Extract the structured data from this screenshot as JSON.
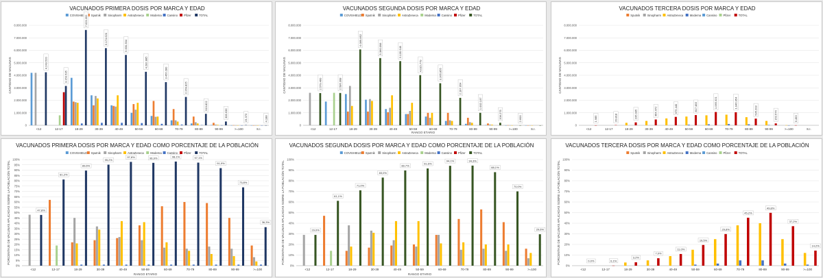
{
  "chart_data": [
    {
      "type": "bar",
      "title": "VACUNADOS PRIMERA DOSIS POR MARCA Y EDAD",
      "xlabel": "",
      "ylabel": "CANTIDAD DE VACUNAS",
      "ylim": [
        0,
        8000000
      ],
      "yticks": [
        "0",
        "1.000.000",
        "2.000.000",
        "3.000.000",
        "4.000.000",
        "5.000.000",
        "6.000.000",
        "7.000.000",
        "8.000.000"
      ],
      "categories": [
        "<12",
        "12-17",
        "18-29",
        "30-39",
        "40-49",
        "50-59",
        "60-69",
        "70-79",
        "80-89",
        "90-99",
        ">=100",
        "S.I."
      ],
      "series": [
        {
          "name": "COVISHIELD",
          "color": "#5b9bd5",
          "values": [
            4200000,
            0,
            3800000,
            2400000,
            1600000,
            1000000,
            750000,
            400000,
            150000,
            30000,
            3000,
            1000
          ]
        },
        {
          "name": "Sputnik",
          "color": "#ed7d31",
          "values": [
            0,
            0,
            1900000,
            1600000,
            1550000,
            1700000,
            1950000,
            1300000,
            700000,
            200000,
            10000,
            1000
          ]
        },
        {
          "name": "Sinopharm",
          "color": "#a5a5a5",
          "values": [
            4200000,
            0,
            1850000,
            2350000,
            1500000,
            1250000,
            680000,
            400000,
            250000,
            60000,
            5000,
            1000
          ]
        },
        {
          "name": "AstraZeneca",
          "color": "#ffc000",
          "values": [
            0,
            0,
            1800000,
            2150000,
            2400000,
            1800000,
            700000,
            300000,
            150000,
            40000,
            3000,
            1000
          ]
        },
        {
          "name": "Moderna",
          "color": "#a9d18e",
          "values": [
            0,
            800000,
            0,
            0,
            0,
            0,
            0,
            0,
            0,
            0,
            0,
            0
          ]
        },
        {
          "name": "Cansino",
          "color": "#4472c4",
          "values": [
            0,
            0,
            150000,
            200000,
            200000,
            180000,
            120000,
            60000,
            20000,
            5000,
            500,
            200
          ]
        },
        {
          "name": "Pfizer",
          "color": "#c00000",
          "values": [
            0,
            2650000,
            0,
            0,
            0,
            0,
            0,
            0,
            0,
            0,
            0,
            0
          ]
        },
        {
          "name": "TOTAL",
          "color": "#203864",
          "values": [
            4243520,
            3150535,
            7629352,
            6174620,
            5630304,
            4282885,
            3456280,
            2269825,
            919822,
            306636,
            23373,
            4188
          ]
        }
      ],
      "data_labels": [
        "4.243.520",
        "3.150.535",
        "7.629.352",
        "6.174.620",
        "5.630.304",
        "4.282.885",
        "3.456.280",
        "2.269.825",
        "919.822",
        "306.636",
        "23.373",
        "4.188"
      ]
    },
    {
      "type": "bar",
      "title": "VACUNADOS SEGUNDA DOSIS POR MARCA Y EDAD",
      "xlabel": "RANGO ETARIO",
      "ylabel": "CANTIDAD DE VACUNAS",
      "ylim": [
        0,
        8000000
      ],
      "yticks": [
        "0",
        "1.000.000",
        "2.000.000",
        "3.000.000",
        "4.000.000",
        "5.000.000",
        "6.000.000",
        "7.000.000",
        "8.000.000"
      ],
      "categories": [
        "<12",
        "12-17",
        "18-29",
        "30-39",
        "40-49",
        "50-59",
        "60-69",
        "70-79",
        "80-89",
        "90-99",
        ">=100",
        "S.I."
      ],
      "series": [
        {
          "name": "COVISHIELD",
          "color": "#5b9bd5",
          "values": [
            0,
            1900000,
            2500000,
            2050000,
            1300000,
            900000,
            700000,
            350000,
            120000,
            25000,
            2000,
            500
          ]
        },
        {
          "name": "Sputnik",
          "color": "#ed7d31",
          "values": [
            0,
            0,
            1100000,
            1100000,
            1050000,
            900000,
            1000000,
            1000000,
            600000,
            150000,
            8000,
            500
          ]
        },
        {
          "name": "Sinopharm",
          "color": "#a5a5a5",
          "values": [
            2600000,
            0,
            3150000,
            2100000,
            1400000,
            1150000,
            600000,
            400000,
            250000,
            60000,
            5000,
            500
          ]
        },
        {
          "name": "AstraZeneca",
          "color": "#ffc000",
          "values": [
            0,
            0,
            1550000,
            1950000,
            2400000,
            1800000,
            1000000,
            350000,
            200000,
            50000,
            3000,
            500
          ]
        },
        {
          "name": "Moderna",
          "color": "#a9d18e",
          "values": [
            0,
            2600000,
            0,
            0,
            0,
            0,
            0,
            0,
            0,
            0,
            0,
            0
          ]
        },
        {
          "name": "Cansino",
          "color": "#4472c4",
          "values": [
            0,
            0,
            0,
            0,
            0,
            0,
            0,
            0,
            0,
            0,
            0,
            0
          ]
        },
        {
          "name": "Pfizer",
          "color": "#c00000",
          "values": [
            0,
            0,
            0,
            0,
            0,
            0,
            0,
            0,
            0,
            0,
            0,
            0
          ]
        },
        {
          "name": "TOTAL",
          "color": "#375623",
          "values": [
            2579460,
            2586308,
            6069852,
            5380098,
            5135549,
            4015779,
            3365855,
            2197954,
            1002137,
            206275,
            2600,
            50
          ]
        }
      ],
      "data_labels": [
        "2.579.460",
        "2.586.308",
        "6.069.852",
        "5.380.098",
        "5.135.549",
        "4.015.779",
        "3.365.855",
        "2.197.954",
        "1.002.137",
        "206.275",
        "2.600",
        ""
      ]
    },
    {
      "type": "bar",
      "title": "VACUNADOS TERCERA DOSIS POR MARCA Y EDAD",
      "xlabel": "",
      "ylabel": "CANTIDAD DE VACUNAS",
      "ylim": [
        0,
        8000000
      ],
      "yticks": [
        "0",
        "1.000.000",
        "2.000.000",
        "3.000.000",
        "4.000.000",
        "5.000.000",
        "6.000.000",
        "7.000.000",
        "8.000.000"
      ],
      "categories": [
        "<12",
        "12-17",
        "18-29",
        "30-39",
        "40-49",
        "50-59",
        "60-69",
        "70-79",
        "80-89",
        "90-99",
        ">=100",
        "S.I."
      ],
      "series": [
        {
          "name": "Sputnik",
          "color": "#ed7d31",
          "values": [
            0,
            0,
            0,
            0,
            0,
            0,
            0,
            0,
            0,
            0,
            0,
            0
          ]
        },
        {
          "name": "Sinopharm",
          "color": "#a5a5a5",
          "values": [
            0,
            0,
            0,
            0,
            0,
            0,
            0,
            0,
            0,
            0,
            0,
            0
          ]
        },
        {
          "name": "AstraZeneca",
          "color": "#ffc000",
          "values": [
            0,
            0,
            200000,
            350000,
            550000,
            700000,
            800000,
            850000,
            650000,
            350000,
            10000,
            0
          ]
        },
        {
          "name": "Moderna",
          "color": "#4472c4",
          "values": [
            0,
            0,
            0,
            0,
            0,
            50000,
            80000,
            100000,
            80000,
            30000,
            500,
            0
          ]
        },
        {
          "name": "Cansino",
          "color": "#5b9bd5",
          "values": [
            0,
            0,
            0,
            0,
            0,
            0,
            0,
            0,
            0,
            0,
            0,
            0
          ]
        },
        {
          "name": "Pfizer",
          "color": "#a9d18e",
          "values": [
            0,
            0,
            0,
            0,
            0,
            0,
            0,
            0,
            0,
            0,
            0,
            0
          ]
        },
        {
          "name": "TOTAL",
          "color": "#c00000",
          "values": [
            1985,
            20818,
            235035,
            464472,
            675440,
            817483,
            1065321,
            1046054,
            535203,
            152574,
            6493,
            0
          ]
        }
      ],
      "data_labels": [
        "1.985",
        "20.818",
        "235.035",
        "464.472",
        "675.440",
        "817.483",
        "1.065.321",
        "1.046.054",
        "535.203",
        "152.574",
        "6.493",
        ""
      ]
    },
    {
      "type": "bar",
      "title": "VACUNADOS PRIMERA DOSIS POR MARCA Y EDAD COMO PORCENTAJE DE LA POBLACIÓN",
      "xlabel": "RANGO ETARIO",
      "ylabel": "PORCENTAJE DE VACUNAS APLICADAS SOBRE LA POBLACIÓN TOTAL",
      "ylim": [
        0,
        100
      ],
      "yticks": [
        "0%",
        "5%",
        "10%",
        "15%",
        "20%",
        "25%",
        "30%",
        "35%",
        "40%",
        "45%",
        "50%",
        "55%",
        "60%",
        "65%",
        "70%",
        "75%",
        "80%",
        "85%",
        "90%",
        "95%",
        "100%"
      ],
      "categories": [
        "<12",
        "12-17",
        "18-29",
        "30-39",
        "40-49",
        "50-59",
        "60-69",
        "70-79",
        "80-89",
        "90-99",
        ">=100"
      ],
      "series": [
        {
          "name": "COVISHIELD",
          "color": "#5b9bd5",
          "values": [
            0,
            0,
            0,
            0,
            0,
            0,
            0,
            0,
            0,
            0,
            0
          ]
        },
        {
          "name": "Sputnik",
          "color": "#ed7d31",
          "values": [
            0,
            62,
            22,
            24,
            26,
            38,
            56,
            60,
            59,
            45,
            19
          ]
        },
        {
          "name": "Sinopharm",
          "color": "#a5a5a5",
          "values": [
            48,
            0,
            45,
            37,
            27,
            24,
            17,
            16,
            18,
            16,
            8
          ]
        },
        {
          "name": "AstraZeneca",
          "color": "#ffc000",
          "values": [
            0,
            0,
            21,
            34,
            42,
            41,
            22,
            14,
            11,
            9,
            4
          ]
        },
        {
          "name": "Moderna",
          "color": "#a9d18e",
          "values": [
            0,
            19,
            0,
            0,
            0,
            0,
            0,
            0,
            0,
            0,
            0
          ]
        },
        {
          "name": "Cansino",
          "color": "#4472c4",
          "values": [
            0,
            0,
            1,
            1,
            1,
            1,
            1,
            1,
            1,
            1,
            1
          ]
        },
        {
          "name": "Pfizer",
          "color": "#c00000",
          "values": [
            0,
            0,
            0,
            0,
            0,
            0,
            0,
            0,
            0,
            0,
            0
          ]
        },
        {
          "name": "TOTAL",
          "color": "#203864",
          "values": [
            47.8,
            81.2,
            89.6,
            95.2,
            97.8,
            96.9,
            98.1,
            97.1,
            91.9,
            73.8,
            36.3
          ]
        }
      ],
      "data_labels": [
        "47,8%",
        "81,2%",
        "89,6%",
        "95,2%",
        "97,8%",
        "96,9%",
        "98,1%",
        "97,1%",
        "91,9%",
        "73,8%",
        "36,3%"
      ]
    },
    {
      "type": "bar",
      "title": "VACUNADOS SEGUNDA DOSIS POR MARCA Y EDAD COMO PORCENTAJE DE LA POBLACIÓN",
      "xlabel": "RANGO ETARIO",
      "ylabel": "PORCENTAJE DE VACUNAS APLICADAS SOBRE LA POBLACIÓN TOTAL",
      "ylim": [
        0,
        100
      ],
      "yticks": [
        "0%",
        "10%",
        "20%",
        "30%",
        "40%",
        "50%",
        "60%",
        "70%",
        "80%",
        "90%",
        "100%"
      ],
      "categories": [
        "<12",
        "12-17",
        "18-29",
        "30-39",
        "40-49",
        "50-59",
        "60-69",
        "70-79",
        "80-89",
        "90-99",
        ">=100"
      ],
      "series": [
        {
          "name": "COVISHIELD",
          "color": "#5b9bd5",
          "values": [
            0,
            0,
            0,
            0,
            0,
            0,
            0,
            0,
            0,
            0,
            0
          ]
        },
        {
          "name": "Sputnik",
          "color": "#ed7d31",
          "values": [
            0,
            47,
            14,
            17,
            19,
            20,
            29,
            44,
            53,
            41,
            16
          ]
        },
        {
          "name": "Sinopharm",
          "color": "#a5a5a5",
          "values": [
            29,
            0,
            38,
            33,
            24,
            18,
            29,
            15,
            16,
            14,
            7
          ]
        },
        {
          "name": "AstraZeneca",
          "color": "#ffc000",
          "values": [
            0,
            0,
            18,
            31,
            42,
            42,
            21,
            22,
            20,
            20,
            12
          ]
        },
        {
          "name": "Moderna",
          "color": "#a9d18e",
          "values": [
            0,
            14,
            0,
            0,
            0,
            0,
            0,
            0,
            0,
            0,
            0
          ]
        },
        {
          "name": "Cansino",
          "color": "#4472c4",
          "values": [
            0,
            0,
            0,
            0,
            0,
            0,
            0,
            0,
            0,
            0,
            0
          ]
        },
        {
          "name": "Pfizer",
          "color": "#c00000",
          "values": [
            0,
            0,
            0,
            0,
            0,
            0,
            0,
            0,
            0,
            0,
            0
          ]
        },
        {
          "name": "TOTAL",
          "color": "#375623",
          "values": [
            29,
            61.1,
            71,
            83,
            89.7,
            91.6,
            94.1,
            94.3,
            88.1,
            70,
            29.6
          ]
        }
      ],
      "data_labels": [
        "29,0%",
        "61,1%",
        "71,0%",
        "83,0%",
        "89,7%",
        "91,6%",
        "94,1%",
        "94,3%",
        "88,1%",
        "70,0%",
        "29,6%"
      ]
    },
    {
      "type": "bar",
      "title": "VACUNADOS TERCERA DOSIS POR MARCA Y EDAD COMO PORCENTAJE DE LA POBLACIÓN",
      "xlabel": "",
      "ylabel": "PORCENTAJE DE VACUNAS APLICADAS SOBRE LA POBLACIÓN TOTAL",
      "ylim": [
        0,
        100
      ],
      "yticks": [
        "0%",
        "10%",
        "20%",
        "30%",
        "40%",
        "50%",
        "60%",
        "70%",
        "80%",
        "90%",
        "100%"
      ],
      "categories": [
        "<12",
        "12-17",
        "18-29",
        "30-39",
        "40-49",
        "50-59",
        "60-69",
        "70-79",
        "80-89",
        "90-99",
        ">=100"
      ],
      "series": [
        {
          "name": "Sputnik",
          "color": "#ed7d31",
          "values": [
            0,
            0,
            0,
            0,
            0,
            0,
            0,
            0,
            0,
            0,
            0
          ]
        },
        {
          "name": "Sinopharm",
          "color": "#a5a5a5",
          "values": [
            0,
            0,
            0,
            0,
            0,
            0,
            0,
            0,
            0,
            0,
            0
          ]
        },
        {
          "name": "AstraZeneca",
          "color": "#ffc000",
          "values": [
            0,
            0,
            3,
            5,
            9,
            15,
            25,
            38,
            40,
            25,
            12
          ]
        },
        {
          "name": "Moderna",
          "color": "#4472c4",
          "values": [
            0,
            0,
            0,
            0,
            0,
            1,
            2,
            5,
            5,
            2,
            1
          ]
        },
        {
          "name": "Cansino",
          "color": "#5b9bd5",
          "values": [
            0,
            0,
            0,
            0,
            0,
            0,
            0,
            0,
            0,
            0,
            0
          ]
        },
        {
          "name": "Pfizer",
          "color": "#a9d18e",
          "values": [
            0,
            0,
            0,
            0,
            0,
            0,
            0,
            0,
            0,
            0,
            0
          ]
        },
        {
          "name": "TOTAL",
          "color": "#c00000",
          "values": [
            0,
            0.1,
            3.2,
            7,
            11,
            19.5,
            29.8,
            45.2,
            49.8,
            37.2,
            14.2
          ]
        }
      ],
      "data_labels": [
        "0,0%",
        "0,1%",
        "3,2%",
        "7,0%",
        "11,0%",
        "19,5%",
        "29,8%",
        "45,2%",
        "49,8%",
        "37,2%",
        "14,2%"
      ]
    }
  ]
}
